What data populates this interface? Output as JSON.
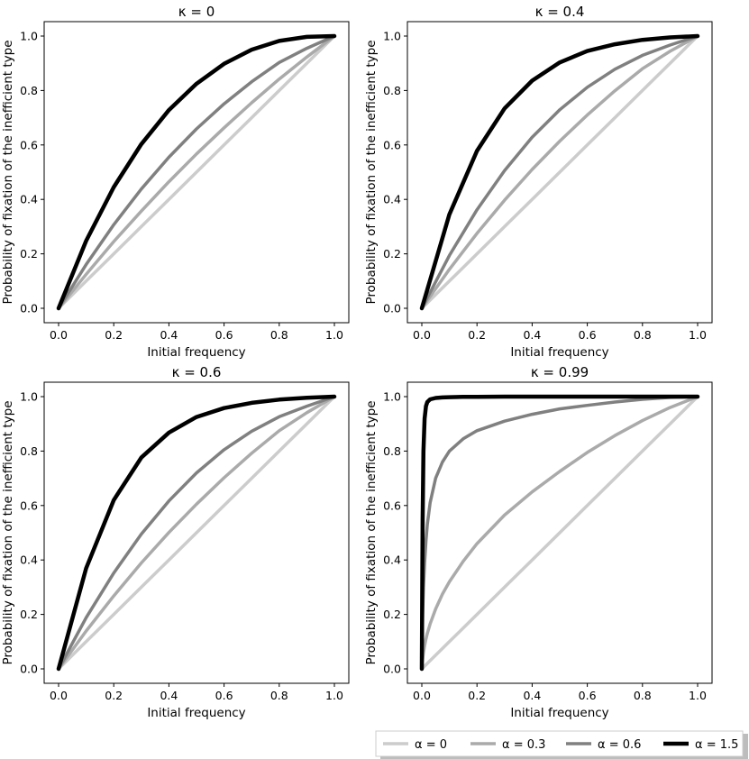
{
  "figure": {
    "legend": {
      "placement": "bottom-right",
      "entries": [
        {
          "label": "α = 0",
          "color": "#cccccc"
        },
        {
          "label": "α = 0.3",
          "color": "#aaaaaa"
        },
        {
          "label": "α = 0.6",
          "color": "#808080"
        },
        {
          "label": "α = 1.5",
          "color": "#000000"
        }
      ]
    }
  },
  "chart_data": [
    {
      "type": "line",
      "title": "κ = 0",
      "xlabel": "Initial frequency",
      "ylabel": "Probability of fixation of the inefficient type",
      "xlim": [
        0,
        1
      ],
      "ylim": [
        0,
        1
      ],
      "xticks": [
        "0.0",
        "0.2",
        "0.4",
        "0.6",
        "0.8",
        "1.0"
      ],
      "yticks": [
        "0.0",
        "0.2",
        "0.4",
        "0.6",
        "0.8",
        "1.0"
      ],
      "x": [
        0,
        0.1,
        0.2,
        0.3,
        0.4,
        0.5,
        0.6,
        0.7,
        0.8,
        0.9,
        1.0
      ],
      "series": [
        {
          "name": "α = 0",
          "values": [
            0,
            0.1,
            0.2,
            0.3,
            0.4,
            0.5,
            0.6,
            0.7,
            0.8,
            0.9,
            1.0
          ]
        },
        {
          "name": "α = 0.3",
          "values": [
            0,
            0.125,
            0.245,
            0.357,
            0.465,
            0.567,
            0.663,
            0.755,
            0.842,
            0.923,
            1.0
          ]
        },
        {
          "name": "α = 0.6",
          "values": [
            0,
            0.161,
            0.307,
            0.438,
            0.555,
            0.659,
            0.751,
            0.832,
            0.903,
            0.955,
            1.0
          ]
        },
        {
          "name": "α = 1.5",
          "values": [
            0,
            0.248,
            0.445,
            0.603,
            0.728,
            0.825,
            0.898,
            0.95,
            0.982,
            0.997,
            1.0
          ]
        }
      ]
    },
    {
      "type": "line",
      "title": "κ = 0.4",
      "xlabel": "Initial frequency",
      "ylabel": "Probability of fixation of the inefficient type",
      "xlim": [
        0,
        1
      ],
      "ylim": [
        0,
        1
      ],
      "xticks": [
        "0.0",
        "0.2",
        "0.4",
        "0.6",
        "0.8",
        "1.0"
      ],
      "yticks": [
        "0.0",
        "0.2",
        "0.4",
        "0.6",
        "0.8",
        "1.0"
      ],
      "x": [
        0,
        0.1,
        0.2,
        0.3,
        0.4,
        0.5,
        0.6,
        0.7,
        0.8,
        0.9,
        1.0
      ],
      "series": [
        {
          "name": "α = 0",
          "values": [
            0,
            0.1,
            0.2,
            0.3,
            0.4,
            0.5,
            0.6,
            0.7,
            0.8,
            0.9,
            1.0
          ]
        },
        {
          "name": "α = 0.3",
          "values": [
            0,
            0.143,
            0.275,
            0.397,
            0.51,
            0.614,
            0.71,
            0.799,
            0.88,
            0.944,
            1.0
          ]
        },
        {
          "name": "α = 0.6",
          "values": [
            0,
            0.194,
            0.362,
            0.506,
            0.628,
            0.729,
            0.812,
            0.878,
            0.929,
            0.967,
            1.0
          ]
        },
        {
          "name": "α = 1.5",
          "values": [
            0,
            0.345,
            0.578,
            0.734,
            0.836,
            0.903,
            0.945,
            0.97,
            0.986,
            0.995,
            1.0
          ]
        }
      ]
    },
    {
      "type": "line",
      "title": "κ = 0.6",
      "xlabel": "Initial frequency",
      "ylabel": "Probability of fixation of the inefficient type",
      "xlim": [
        0,
        1
      ],
      "ylim": [
        0,
        1
      ],
      "xticks": [
        "0.0",
        "0.2",
        "0.4",
        "0.6",
        "0.8",
        "1.0"
      ],
      "yticks": [
        "0.0",
        "0.2",
        "0.4",
        "0.6",
        "0.8",
        "1.0"
      ],
      "x": [
        0,
        0.1,
        0.2,
        0.3,
        0.4,
        0.5,
        0.6,
        0.7,
        0.8,
        0.9,
        1.0
      ],
      "series": [
        {
          "name": "α = 0",
          "values": [
            0,
            0.1,
            0.2,
            0.3,
            0.4,
            0.5,
            0.6,
            0.7,
            0.8,
            0.9,
            1.0
          ]
        },
        {
          "name": "α = 0.3",
          "values": [
            0,
            0.139,
            0.268,
            0.389,
            0.501,
            0.605,
            0.702,
            0.792,
            0.875,
            0.941,
            1.0
          ]
        },
        {
          "name": "α = 0.6",
          "values": [
            0,
            0.188,
            0.352,
            0.495,
            0.617,
            0.72,
            0.805,
            0.873,
            0.926,
            0.965,
            1.0
          ]
        },
        {
          "name": "α = 1.5",
          "values": [
            0,
            0.37,
            0.62,
            0.776,
            0.868,
            0.925,
            0.958,
            0.977,
            0.989,
            0.996,
            1.0
          ]
        }
      ]
    },
    {
      "type": "line",
      "title": "κ = 0.99",
      "xlabel": "Initial frequency",
      "ylabel": "Probability of fixation of the inefficient type",
      "xlim": [
        0,
        1
      ],
      "ylim": [
        0,
        1
      ],
      "xticks": [
        "0.0",
        "0.2",
        "0.4",
        "0.6",
        "0.8",
        "1.0"
      ],
      "yticks": [
        "0.0",
        "0.2",
        "0.4",
        "0.6",
        "0.8",
        "1.0"
      ],
      "x": [
        0,
        0.003,
        0.006,
        0.01,
        0.015,
        0.02,
        0.03,
        0.05,
        0.075,
        0.1,
        0.15,
        0.2,
        0.3,
        0.4,
        0.5,
        0.6,
        0.7,
        0.8,
        0.9,
        1.0
      ],
      "series": [
        {
          "name": "α = 0",
          "values": [
            0,
            0.003,
            0.006,
            0.01,
            0.015,
            0.02,
            0.03,
            0.05,
            0.075,
            0.1,
            0.15,
            0.2,
            0.3,
            0.4,
            0.5,
            0.6,
            0.7,
            0.8,
            0.9,
            1.0
          ]
        },
        {
          "name": "α = 0.3",
          "values": [
            0,
            0.035,
            0.06,
            0.085,
            0.11,
            0.13,
            0.165,
            0.22,
            0.275,
            0.32,
            0.395,
            0.46,
            0.565,
            0.65,
            0.725,
            0.795,
            0.857,
            0.912,
            0.96,
            1.0
          ]
        },
        {
          "name": "α = 0.6",
          "values": [
            0,
            0.2,
            0.3,
            0.39,
            0.47,
            0.53,
            0.61,
            0.7,
            0.76,
            0.8,
            0.845,
            0.875,
            0.91,
            0.935,
            0.955,
            0.968,
            0.98,
            0.99,
            0.997,
            1.0
          ]
        },
        {
          "name": "α = 1.5",
          "values": [
            0,
            0.55,
            0.8,
            0.92,
            0.965,
            0.98,
            0.99,
            0.995,
            0.997,
            0.998,
            0.999,
            0.999,
            1.0,
            1.0,
            1.0,
            1.0,
            1.0,
            1.0,
            1.0,
            1.0
          ]
        }
      ]
    }
  ]
}
